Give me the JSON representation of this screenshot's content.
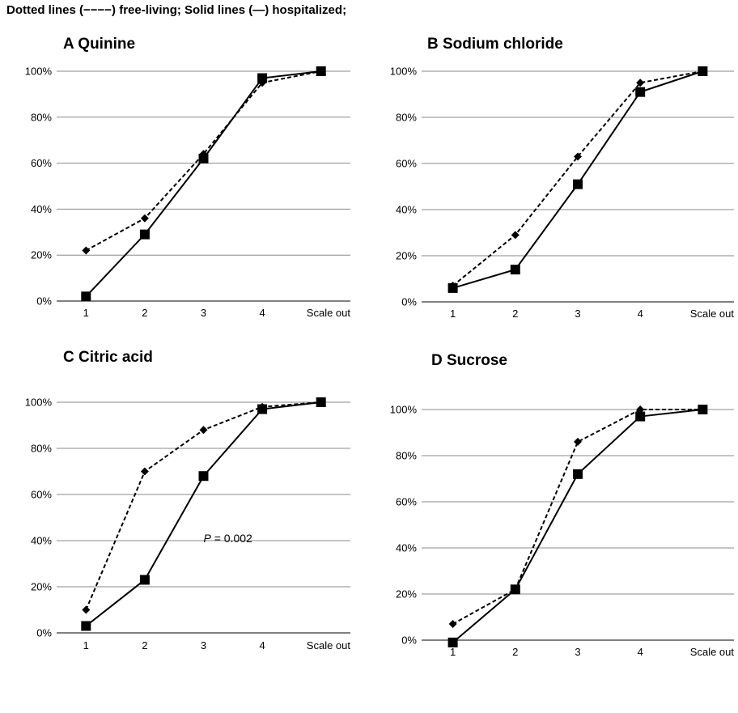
{
  "header": {
    "legend_text": "Dotted lines (−−−−) free-living;  Solid lines (—) hospitalized;"
  },
  "colors": {
    "line": "#000000",
    "grid": "#888888"
  },
  "chart_data": [
    {
      "type": "line",
      "title": "A  Quinine",
      "categories": [
        "1",
        "2",
        "3",
        "4",
        "Scale out"
      ],
      "ylim": [
        0,
        100
      ],
      "yticks": [
        "0%",
        "20%",
        "40%",
        "60%",
        "80%",
        "100%"
      ],
      "grid": true,
      "series": [
        {
          "style": "dashed",
          "marker": "diamond",
          "values": [
            22,
            36,
            64,
            95,
            100
          ]
        },
        {
          "style": "solid",
          "marker": "square",
          "values": [
            2,
            29,
            62,
            97,
            100
          ]
        }
      ]
    },
    {
      "type": "line",
      "title": "B  Sodium chloride",
      "categories": [
        "1",
        "2",
        "3",
        "4",
        "Scale out"
      ],
      "ylim": [
        0,
        100
      ],
      "yticks": [
        "0%",
        "20%",
        "40%",
        "60%",
        "80%",
        "100%"
      ],
      "grid": true,
      "series": [
        {
          "style": "dashed",
          "marker": "diamond",
          "values": [
            7,
            29,
            63,
            95,
            100
          ]
        },
        {
          "style": "solid",
          "marker": "square",
          "values": [
            6,
            14,
            51,
            91,
            100
          ]
        }
      ]
    },
    {
      "type": "line",
      "title": "C  Citric acid",
      "categories": [
        "1",
        "2",
        "3",
        "4",
        "Scale out"
      ],
      "ylim": [
        0,
        100
      ],
      "yticks": [
        "0%",
        "20%",
        "40%",
        "60%",
        "80%",
        "100%"
      ],
      "grid": true,
      "annotation": {
        "italic": "P",
        "rest": " = 0.002"
      },
      "series": [
        {
          "style": "dashed",
          "marker": "diamond",
          "values": [
            10,
            70,
            88,
            98,
            100
          ]
        },
        {
          "style": "solid",
          "marker": "square",
          "values": [
            3,
            23,
            68,
            97,
            100
          ]
        }
      ]
    },
    {
      "type": "line",
      "title": "D  Sucrose",
      "categories": [
        "1",
        "2",
        "3",
        "4",
        "Scale out"
      ],
      "ylim": [
        0,
        100
      ],
      "yticks": [
        "0%",
        "20%",
        "40%",
        "60%",
        "80%",
        "100%"
      ],
      "grid": true,
      "series": [
        {
          "style": "dashed",
          "marker": "diamond",
          "values": [
            7,
            22,
            86,
            100,
            100
          ]
        },
        {
          "style": "solid",
          "marker": "square",
          "values": [
            -1,
            22,
            72,
            97,
            100
          ]
        }
      ]
    }
  ]
}
